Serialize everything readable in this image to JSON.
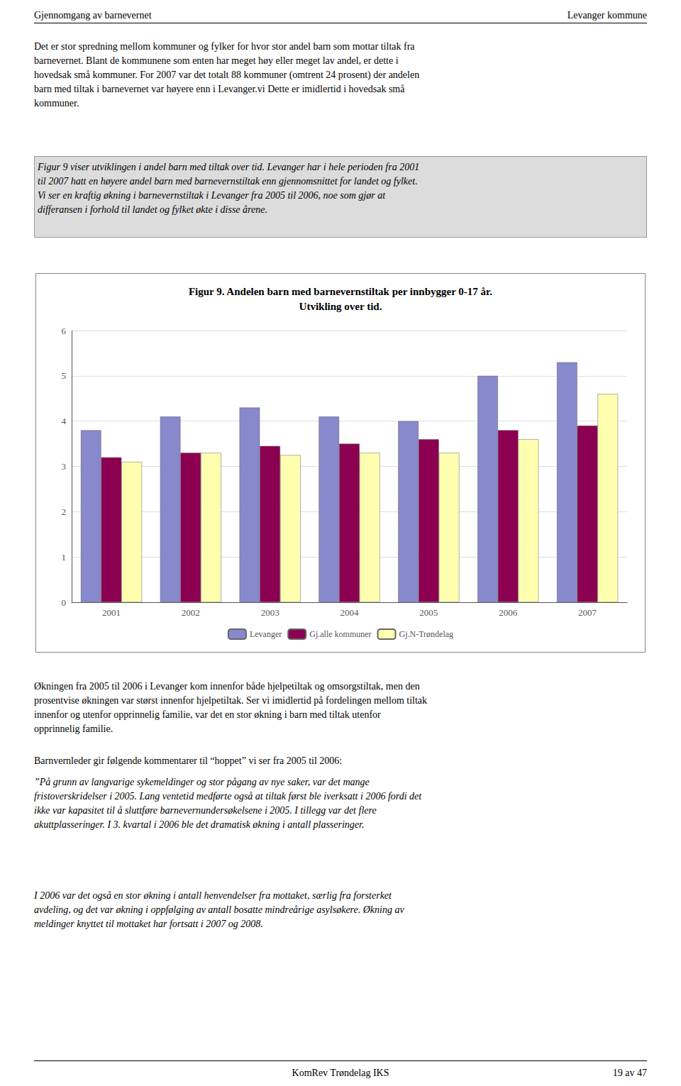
{
  "page": {
    "header_left": "Gjennomgang av barnevernet",
    "header_right": "Levanger kommune",
    "para1_lines": [
      "Det er stor spredning mellom kommuner og fylker for hvor stor andel barn som mottar tiltak fra",
      "barnevernet. Blant de kommunene som enten har meget høy eller meget lav andel, er dette i",
      "hovedsak små kommuner. For 2007 var det totalt 88 kommuner (omtrent 24 prosent) der andelen",
      "barn med tiltak i barnevernet var høyere enn i Levanger.vi Dette er imidlertid i hovedsak små",
      "kommuner."
    ],
    "box_lines": [
      "Figur 9 viser utviklingen i andel barn med tiltak over tid. Levanger har i hele perioden fra 2001",
      "til 2007 hatt en høyere andel barn med barnevernstiltak enn gjennomsnittet for landet og fylket.",
      "Vi ser en kraftig økning i barnevernstiltak i Levanger fra 2005 til 2006, noe som gjør at",
      "differansen i forhold til landet og fylket økte i disse årene."
    ],
    "para2_lines": [
      "Økningen fra 2005 til 2006 i Levanger kom innenfor både hjelpetiltak og omsorgstiltak, men den",
      "prosentvise økningen var størst innenfor hjelpetiltak. Ser vi imidlertid på fordelingen mellom tiltak",
      "innenfor og utenfor opprinnelig familie, var det en stor økning i barn med tiltak utenfor",
      "opprinnelig familie."
    ],
    "para3": "Barnvernleder gir følgende kommentarer til “hoppet” vi ser fra 2005 til 2006:",
    "para4_lines": [
      "”På grunn av langvarige sykemeldinger og stor pågang av nye saker, var det mange",
      "fristoverskridelser i 2005. Lang ventetid medførte også at tiltak først ble iverksatt i 2006 fordi det",
      "ikke var kapasitet til å sluttføre barnevernundersøkelsene i 2005. I tillegg var det flere",
      "akuttplasseringer. I 3. kvartal i 2006 ble det dramatisk økning i antall plasseringer."
    ],
    "para5_lines": [
      "I 2006 var det også en stor økning i antall henvendelser fra mottaket, særlig fra forsterket",
      "avdeling, og det var økning i oppfølging av antall bosatte mindrеårige asylsøkere. Økning av",
      "meldinger knyttet til mottaket har fortsatt i 2007 og 2008."
    ],
    "footer_center": "KomRev Trøndelag IKS",
    "footer_right": "19 av 47"
  },
  "chart_data": {
    "type": "bar",
    "title": "Figur 9. Andelen barn med barnevernstiltak per innbygger 0-17 år.",
    "subtitle": "Utvikling over tid.",
    "categories": [
      "2001",
      "2002",
      "2003",
      "2004",
      "2005",
      "2006",
      "2007"
    ],
    "series": [
      {
        "name": "Levanger",
        "color": "#8888CC",
        "values": [
          3.8,
          4.1,
          4.3,
          4.1,
          4.0,
          5.0,
          5.3
        ]
      },
      {
        "name": "Gj.alle kommuner",
        "color": "#8B0050",
        "values": [
          3.2,
          3.3,
          3.45,
          3.5,
          3.6,
          3.8,
          3.9
        ]
      },
      {
        "name": "Gj.N-Trøndelag",
        "color": "#FFFFB0",
        "values": [
          3.1,
          3.3,
          3.25,
          3.3,
          3.3,
          3.6,
          4.6
        ]
      }
    ],
    "ylim": [
      0,
      6
    ],
    "yticks": [
      0,
      1,
      2,
      3,
      4,
      5,
      6
    ],
    "grid": true,
    "legend": "bottom"
  }
}
